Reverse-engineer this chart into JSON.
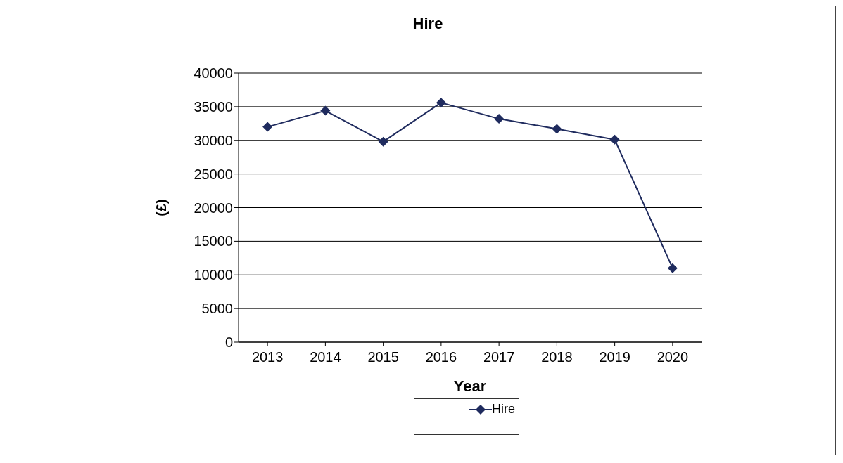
{
  "chart_data": {
    "type": "line",
    "title": "Hire",
    "xlabel": "Year",
    "ylabel": "(£)",
    "categories": [
      "2013",
      "2014",
      "2015",
      "2016",
      "2017",
      "2018",
      "2019",
      "2020"
    ],
    "series": [
      {
        "name": "Hire",
        "color": "#1f2b5e",
        "values": [
          32000,
          34400,
          29800,
          35600,
          33200,
          31700,
          30100,
          11000
        ]
      }
    ],
    "ylim": [
      0,
      40000
    ],
    "yticks": [
      0,
      5000,
      10000,
      15000,
      20000,
      25000,
      30000,
      35000,
      40000
    ],
    "grid": "y",
    "legend": "bottom",
    "marker": "diamond",
    "line_style": "solid"
  }
}
